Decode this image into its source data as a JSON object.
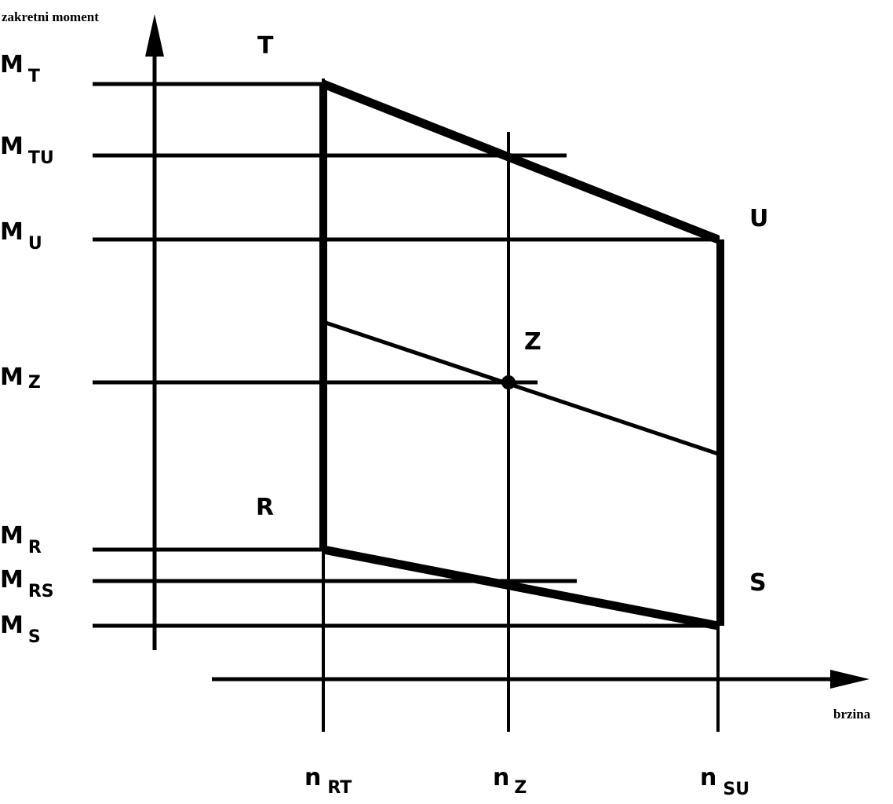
{
  "axes": {
    "y_label": "zakretni moment",
    "x_label": "brzina"
  },
  "torque_labels": [
    {
      "main": "M",
      "sub": "T"
    },
    {
      "main": "M",
      "sub": "TU"
    },
    {
      "main": "M",
      "sub": "U"
    },
    {
      "main": "M",
      "sub": "Z"
    },
    {
      "main": "M",
      "sub": "R"
    },
    {
      "main": "M",
      "sub": "RS"
    },
    {
      "main": "M",
      "sub": "S"
    }
  ],
  "speed_labels": [
    {
      "main": "n",
      "sub": "RT"
    },
    {
      "main": "n",
      "sub": "Z"
    },
    {
      "main": "n",
      "sub": "SU"
    }
  ],
  "points": [
    "T",
    "U",
    "Z",
    "R",
    "S"
  ]
}
